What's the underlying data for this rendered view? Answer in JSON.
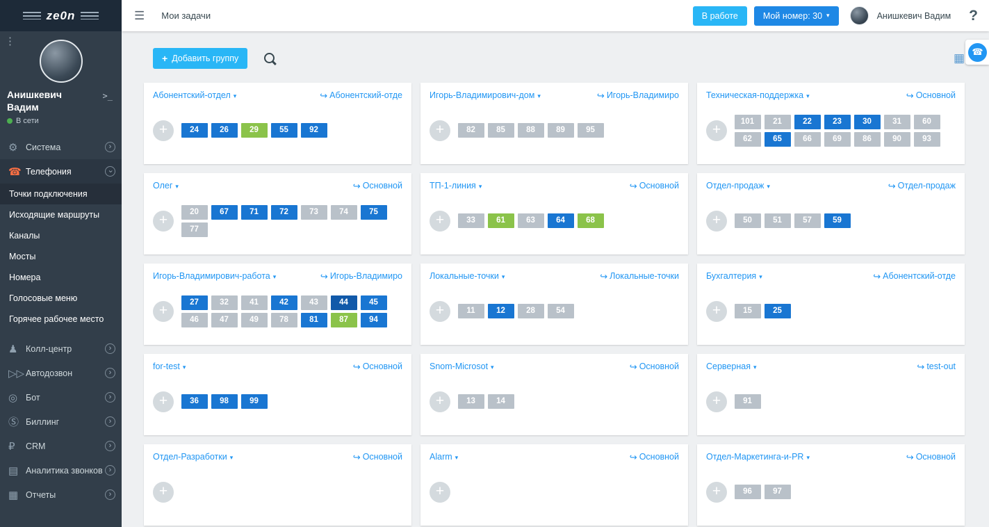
{
  "brand": {
    "logo_text": "ze0n"
  },
  "colors": {
    "accent_cyan": "#29b6f6",
    "accent_blue": "#1e88e5",
    "link_blue": "#2196f3",
    "chip_blue": "#1976d2",
    "chip_gray": "#b9c1c9",
    "chip_green": "#8bc34a",
    "sidebar_bg": "#323e4a",
    "phone_orange": "#ff7043",
    "online_green": "#4caf50"
  },
  "icons": {
    "kebab-icon": "⋮",
    "hamburger-icon": "☰",
    "terminal-icon": ">_",
    "gear-icon": "⚙",
    "phone-icon": "☎",
    "users-icon": "♟",
    "autodial-icon": "▷▷",
    "bot-icon": "◎",
    "billing-icon": "Ⓢ",
    "crm-icon": "₽",
    "analytics-icon": "▤",
    "reports-icon": "▦",
    "table-icon": "▦",
    "chevron-icon": "›",
    "caret-down": "▾",
    "forward-icon": "↪",
    "plus": "+"
  },
  "sidebar": {
    "user": {
      "name": "Анишкевич Вадим",
      "status": "В сети"
    },
    "menu": [
      {
        "label": "Система",
        "icon": "gear-icon",
        "type": "parent"
      },
      {
        "label": "Телефония",
        "icon": "phone-icon",
        "type": "parent",
        "expanded": true,
        "accent": true
      },
      {
        "label": "Точки подключения",
        "type": "sub",
        "active": true
      },
      {
        "label": "Исходящие маршруты",
        "type": "sub"
      },
      {
        "label": "Каналы",
        "type": "sub"
      },
      {
        "label": "Мосты",
        "type": "sub"
      },
      {
        "label": "Номера",
        "type": "sub"
      },
      {
        "label": "Голосовые меню",
        "type": "sub"
      },
      {
        "label": "Горячее рабочее место",
        "type": "sub"
      },
      {
        "label": "Колл-центр",
        "icon": "users-icon",
        "type": "parent",
        "gap": true
      },
      {
        "label": "Автодозвон",
        "icon": "autodial-icon",
        "type": "parent"
      },
      {
        "label": "Бот",
        "icon": "bot-icon",
        "type": "parent"
      },
      {
        "label": "Биллинг",
        "icon": "billing-icon",
        "type": "parent"
      },
      {
        "label": "CRM",
        "icon": "crm-icon",
        "type": "parent"
      },
      {
        "label": "Аналитика звонков",
        "icon": "analytics-icon",
        "type": "parent"
      },
      {
        "label": "Отчеты",
        "icon": "reports-icon",
        "type": "parent"
      }
    ]
  },
  "topbar": {
    "title": "Мои задачи",
    "status_button": "В работе",
    "number_button": "Мой номер: 30",
    "user_name": "Анишкевич Вадим",
    "help": "?"
  },
  "toolbar": {
    "add_group_label": "Добавить группу",
    "plus": "+"
  },
  "cards": [
    {
      "title": "Абонентский-отдел",
      "route": "Абонентский-отде",
      "chips": [
        {
          "n": "24",
          "s": "blue"
        },
        {
          "n": "26",
          "s": "blue"
        },
        {
          "n": "29",
          "s": "green"
        },
        {
          "n": "55",
          "s": "blue"
        },
        {
          "n": "92",
          "s": "blue"
        }
      ]
    },
    {
      "title": "Игорь-Владимирович-дом",
      "route": "Игорь-Владимиро",
      "chips": [
        {
          "n": "82",
          "s": "gray"
        },
        {
          "n": "85",
          "s": "gray"
        },
        {
          "n": "88",
          "s": "gray"
        },
        {
          "n": "89",
          "s": "gray"
        },
        {
          "n": "95",
          "s": "gray"
        }
      ]
    },
    {
      "title": "Техническая-поддержка",
      "route": "Основной",
      "chips": [
        {
          "n": "101",
          "s": "gray"
        },
        {
          "n": "21",
          "s": "gray"
        },
        {
          "n": "22",
          "s": "blue"
        },
        {
          "n": "23",
          "s": "blue"
        },
        {
          "n": "30",
          "s": "blue"
        },
        {
          "n": "31",
          "s": "gray"
        },
        {
          "n": "60",
          "s": "gray"
        },
        {
          "n": "62",
          "s": "gray"
        },
        {
          "n": "65",
          "s": "blue"
        },
        {
          "n": "66",
          "s": "gray"
        },
        {
          "n": "69",
          "s": "gray"
        },
        {
          "n": "86",
          "s": "gray"
        },
        {
          "n": "90",
          "s": "gray"
        },
        {
          "n": "93",
          "s": "gray"
        }
      ]
    },
    {
      "title": "Олег",
      "route": "Основной",
      "chips": [
        {
          "n": "20",
          "s": "gray"
        },
        {
          "n": "67",
          "s": "blue"
        },
        {
          "n": "71",
          "s": "blue"
        },
        {
          "n": "72",
          "s": "blue"
        },
        {
          "n": "73",
          "s": "gray"
        },
        {
          "n": "74",
          "s": "gray"
        },
        {
          "n": "75",
          "s": "blue"
        },
        {
          "n": "77",
          "s": "gray"
        }
      ]
    },
    {
      "title": "ТП-1-линия",
      "route": "Основной",
      "chips": [
        {
          "n": "33",
          "s": "gray"
        },
        {
          "n": "61",
          "s": "green"
        },
        {
          "n": "63",
          "s": "gray"
        },
        {
          "n": "64",
          "s": "blue"
        },
        {
          "n": "68",
          "s": "green"
        }
      ]
    },
    {
      "title": "Отдел-продаж",
      "route": "Отдел-продаж",
      "chips": [
        {
          "n": "50",
          "s": "gray"
        },
        {
          "n": "51",
          "s": "gray"
        },
        {
          "n": "57",
          "s": "gray"
        },
        {
          "n": "59",
          "s": "blue"
        }
      ]
    },
    {
      "title": "Игорь-Владимирович-работа",
      "route": "Игорь-Владимиро",
      "chips": [
        {
          "n": "27",
          "s": "blue"
        },
        {
          "n": "32",
          "s": "gray"
        },
        {
          "n": "41",
          "s": "gray"
        },
        {
          "n": "42",
          "s": "blue"
        },
        {
          "n": "43",
          "s": "gray"
        },
        {
          "n": "44",
          "s": "navy"
        },
        {
          "n": "45",
          "s": "blue"
        },
        {
          "n": "46",
          "s": "gray"
        },
        {
          "n": "47",
          "s": "gray"
        },
        {
          "n": "49",
          "s": "gray"
        },
        {
          "n": "78",
          "s": "gray"
        },
        {
          "n": "81",
          "s": "blue"
        },
        {
          "n": "87",
          "s": "green"
        },
        {
          "n": "94",
          "s": "blue"
        }
      ]
    },
    {
      "title": "Локальные-точки",
      "route": "Локальные-точки",
      "chips": [
        {
          "n": "11",
          "s": "gray"
        },
        {
          "n": "12",
          "s": "blue"
        },
        {
          "n": "28",
          "s": "gray"
        },
        {
          "n": "54",
          "s": "gray"
        }
      ]
    },
    {
      "title": "Бухгалтерия",
      "route": "Абонентский-отде",
      "chips": [
        {
          "n": "15",
          "s": "gray"
        },
        {
          "n": "25",
          "s": "blue"
        }
      ]
    },
    {
      "title": "for-test",
      "route": "Основной",
      "chips": [
        {
          "n": "36",
          "s": "blue"
        },
        {
          "n": "98",
          "s": "blue"
        },
        {
          "n": "99",
          "s": "blue"
        }
      ]
    },
    {
      "title": "Snom-Microsot",
      "route": "Основной",
      "chips": [
        {
          "n": "13",
          "s": "gray"
        },
        {
          "n": "14",
          "s": "gray"
        }
      ]
    },
    {
      "title": "Серверная",
      "route": "test-out",
      "chips": [
        {
          "n": "91",
          "s": "gray"
        }
      ]
    },
    {
      "title": "Отдел-Разработки",
      "route": "Основной",
      "chips": []
    },
    {
      "title": "Alarm",
      "route": "Основной",
      "chips": []
    },
    {
      "title": "Отдел-Маркетинга-и-PR",
      "route": "Основной",
      "chips": [
        {
          "n": "96",
          "s": "gray"
        },
        {
          "n": "97",
          "s": "gray"
        }
      ]
    }
  ]
}
